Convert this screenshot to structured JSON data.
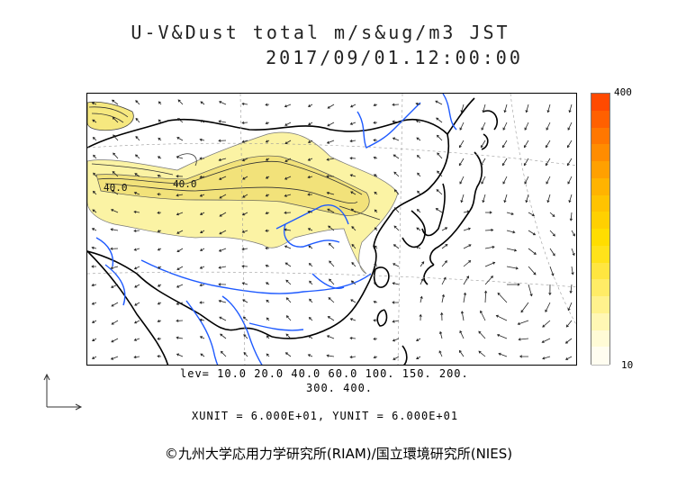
{
  "title_line1": "U-V&Dust total m/s&ug/m3 JST",
  "title_line2": "2017/09/01.12:00:00",
  "colorbar": {
    "max_label": "400",
    "min_label": "10",
    "colors": [
      "#fffdf0",
      "#fffbd6",
      "#fff7b4",
      "#fff28d",
      "#ffec66",
      "#ffe640",
      "#ffe21a",
      "#ffdd00",
      "#ffd000",
      "#ffc300",
      "#ffb300",
      "#ffa000",
      "#ff8c00",
      "#ff7700",
      "#ff6000",
      "#ff4a00"
    ]
  },
  "contour_labels": [
    "40.0",
    "40.0"
  ],
  "levels_line1": "lev= 10.0 20.0 40.0 60.0 100. 150. 200.",
  "levels_line2": "300. 400.",
  "units_line": "XUNIT = 6.000E+01, YUNIT = 6.000E+01",
  "copyright": "©九州大学応用力学研究所(RIAM)/国立環境研究所(NIES)",
  "colors": {
    "coast": "#000000",
    "rivers": "#1e5aff",
    "dust_fill": "#fbf3a4",
    "dust_core": "#f2e27a",
    "grid": "#888888"
  }
}
